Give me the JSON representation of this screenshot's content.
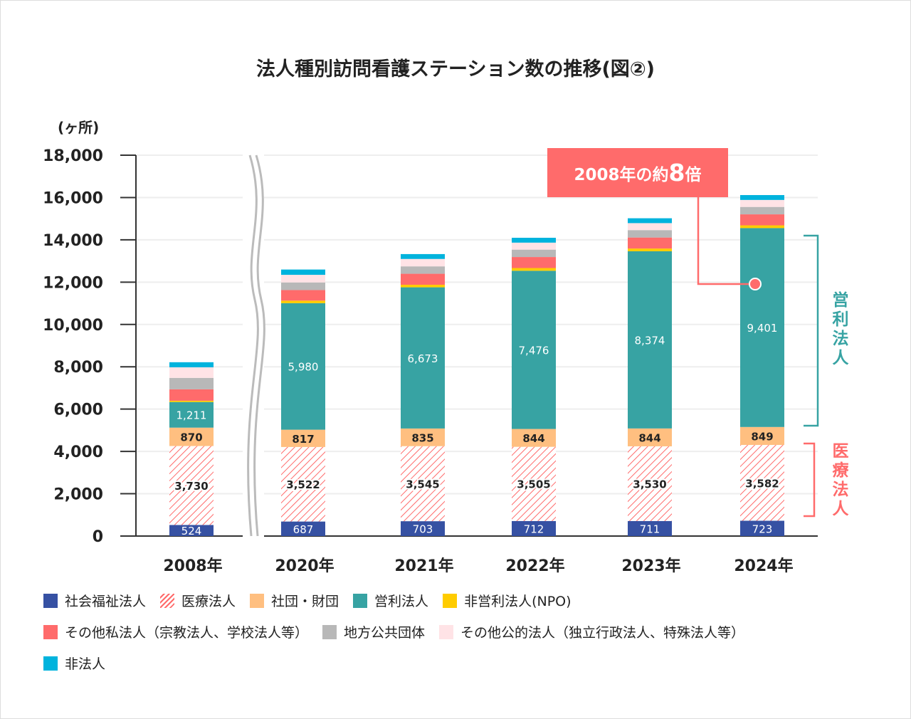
{
  "chart_data": {
    "type": "bar",
    "stacked": true,
    "title": "法人種別訪問看護ステーション数の推移(図②)",
    "ylabel": "(ヶ所)",
    "ylim": [
      0,
      18000
    ],
    "yticks": [
      "0",
      "2,000",
      "4,000",
      "6,000",
      "8,000",
      "10,000",
      "12,000",
      "14,000",
      "16,000",
      "18,000"
    ],
    "categories": [
      "2008年",
      "2020年",
      "2021年",
      "2022年",
      "2023年",
      "2024年"
    ],
    "series": [
      {
        "name": "社会福祉法人",
        "color": "#3651a3",
        "values": [
          524,
          687,
          703,
          712,
          711,
          723
        ],
        "labels": [
          "524",
          "687",
          "703",
          "712",
          "711",
          "723"
        ]
      },
      {
        "name": "医療法人",
        "color": "#ff6b6b",
        "pattern": "hatch",
        "values": [
          3730,
          3522,
          3545,
          3505,
          3530,
          3582
        ],
        "labels": [
          "3,730",
          "3,522",
          "3,545",
          "3,505",
          "3,530",
          "3,582"
        ]
      },
      {
        "name": "社団・財団",
        "color": "#ffbf80",
        "values": [
          870,
          817,
          835,
          844,
          844,
          849
        ],
        "labels": [
          "870",
          "817",
          "835",
          "844",
          "844",
          "849"
        ]
      },
      {
        "name": "営利法人",
        "color": "#37a3a3",
        "values": [
          1211,
          5980,
          6673,
          7476,
          8374,
          9401
        ],
        "labels": [
          "1,211",
          "5,980",
          "6,673",
          "7,476",
          "8,374",
          "9,401"
        ]
      },
      {
        "name": "非営利法人(NPO)",
        "color": "#ffcc00",
        "values": [
          60,
          120,
          120,
          130,
          130,
          130
        ]
      },
      {
        "name": "その他私法人（宗教法人、学校法人等）",
        "color": "#ff6b6b",
        "values": [
          540,
          500,
          520,
          520,
          520,
          520
        ]
      },
      {
        "name": "地方公共団体",
        "color": "#b8b8b8",
        "values": [
          540,
          360,
          350,
          350,
          350,
          350
        ]
      },
      {
        "name": "その他公的法人（独立行政法人、特殊法人等）",
        "color": "#ffe3e6",
        "values": [
          500,
          360,
          350,
          330,
          330,
          330
        ]
      },
      {
        "name": "非法人",
        "color": "#00b3dd",
        "values": [
          240,
          250,
          230,
          230,
          230,
          230
        ]
      }
    ],
    "annotation": {
      "text": "2008年の約",
      "strong": "8",
      "suffix": "倍",
      "color": "#ff6b6b"
    },
    "brackets": [
      {
        "label": "営利法人",
        "color": "#37a3a3"
      },
      {
        "label": "医療法人",
        "color": "#ff6b6b"
      }
    ],
    "legend_position": "bottom"
  }
}
